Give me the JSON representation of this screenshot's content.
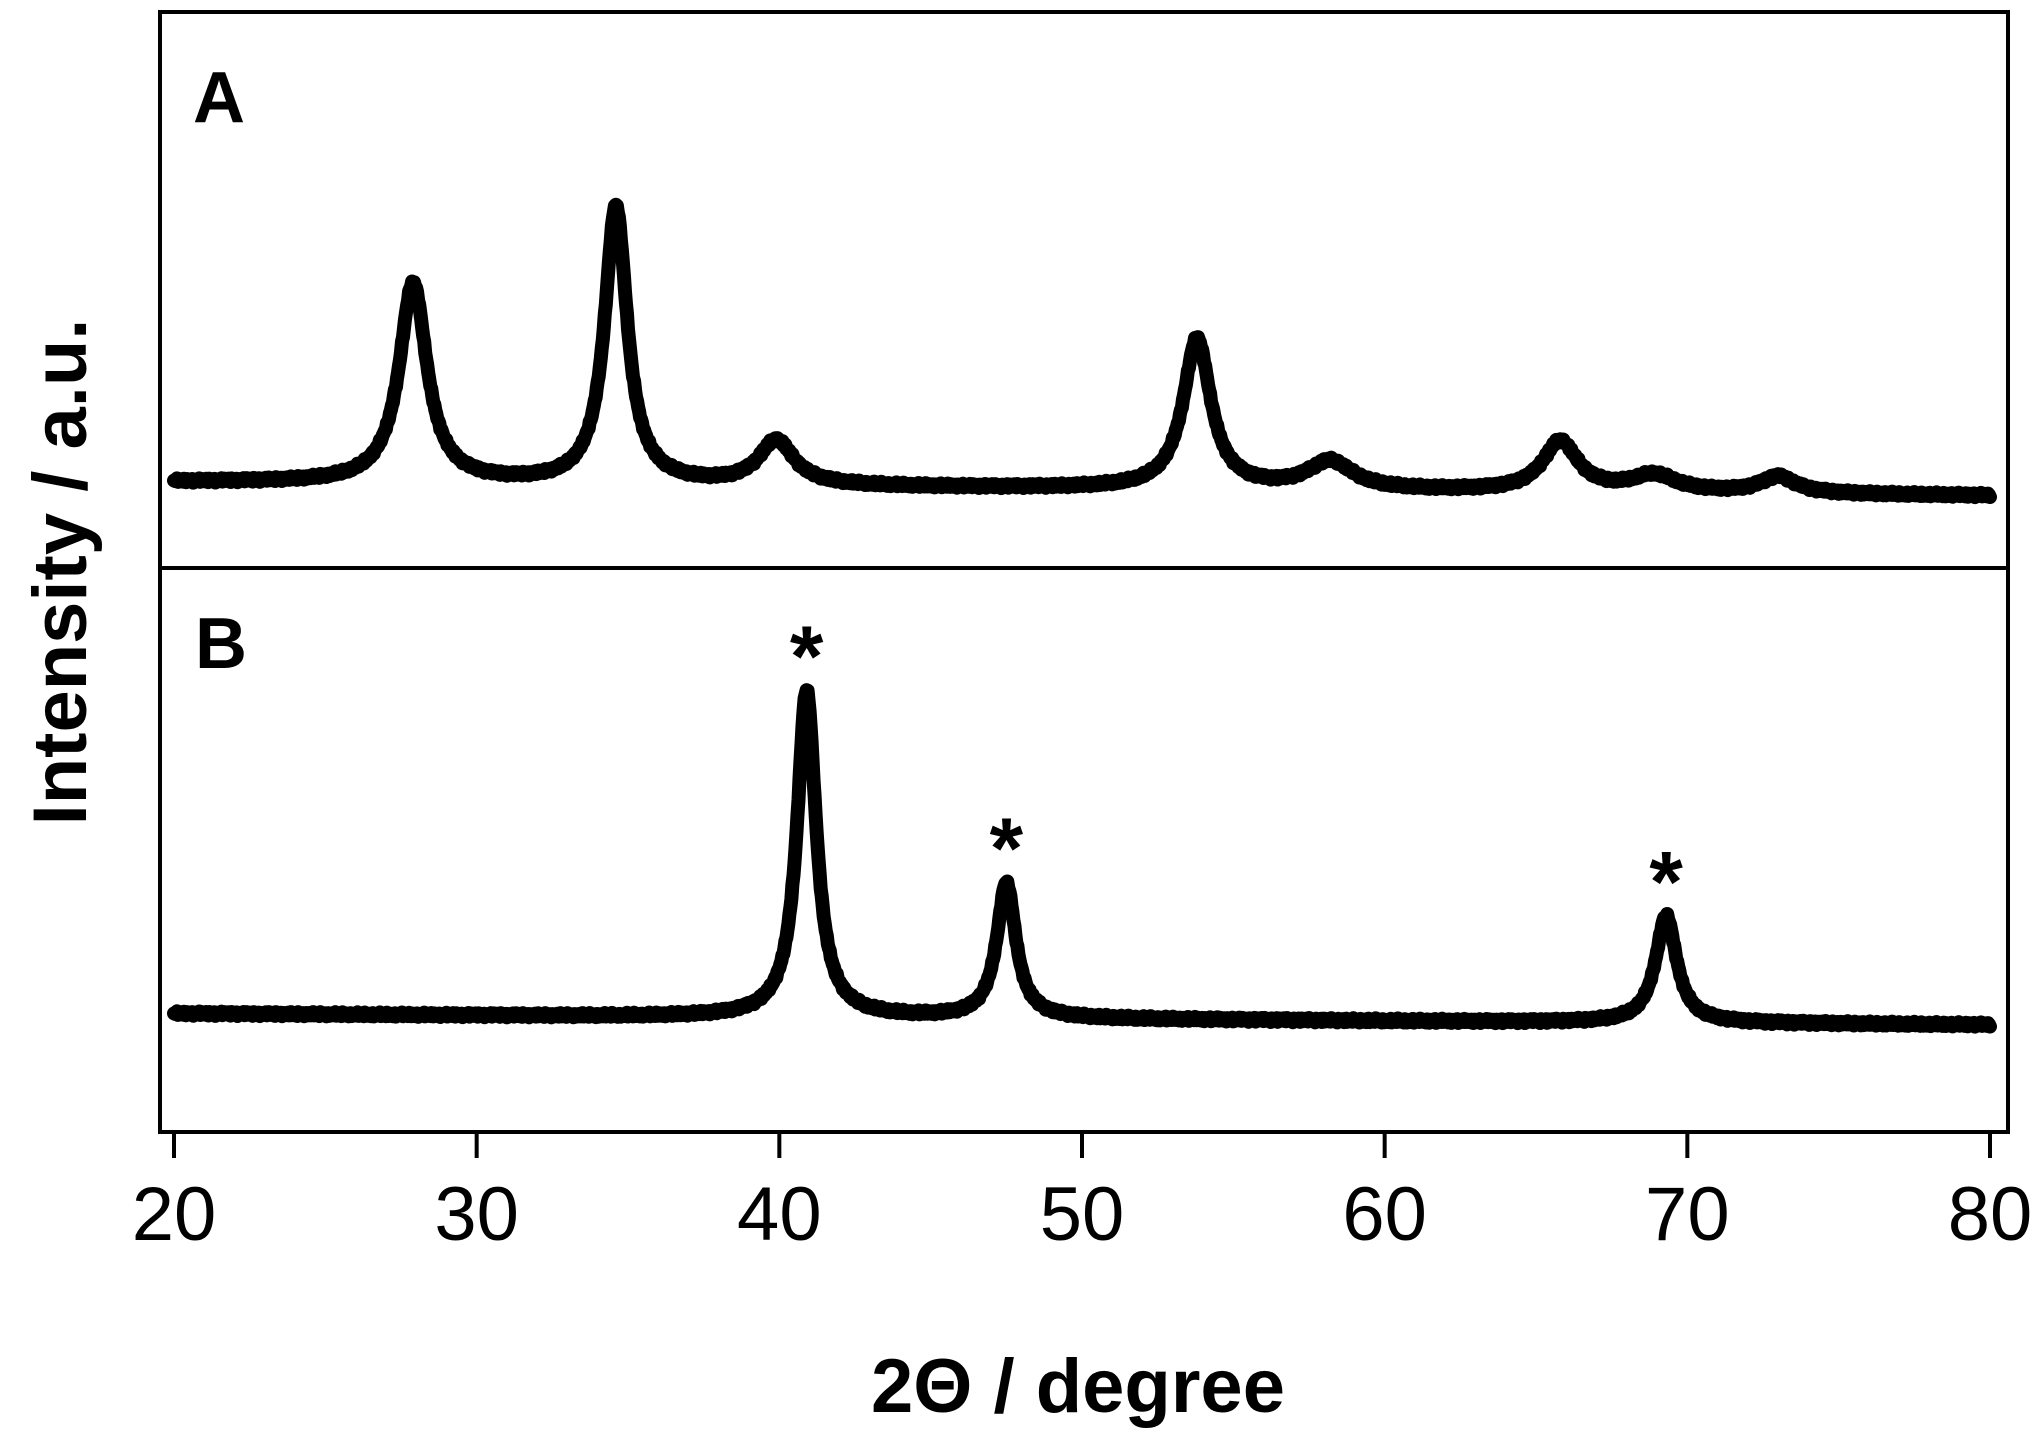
{
  "chart_data": {
    "type": "line",
    "xlabel": "2Θ / degree",
    "ylabel": "Intensity / a.u.",
    "xlim": [
      20,
      80
    ],
    "x_ticks": [
      "20",
      "30",
      "40",
      "50",
      "60",
      "70",
      "80"
    ],
    "grid": false,
    "panels": [
      {
        "label": "A",
        "ylim": [
          0,
          1.0
        ],
        "series": [
          {
            "baseline": 0.155,
            "baseline_end": 0.13,
            "peaks": [
              {
                "x": 27.9,
                "height": 0.36,
                "width": 0.55
              },
              {
                "x": 34.6,
                "height": 0.5,
                "width": 0.45
              },
              {
                "x": 39.9,
                "height": 0.08,
                "width": 0.7
              },
              {
                "x": 53.8,
                "height": 0.27,
                "width": 0.55
              },
              {
                "x": 58.2,
                "height": 0.05,
                "width": 0.9
              },
              {
                "x": 65.8,
                "height": 0.09,
                "width": 0.7
              },
              {
                "x": 68.9,
                "height": 0.03,
                "width": 0.9
              },
              {
                "x": 73.0,
                "height": 0.03,
                "width": 0.7
              }
            ]
          }
        ]
      },
      {
        "label": "B",
        "ylim": [
          0,
          1.0
        ],
        "series": [
          {
            "baseline": 0.21,
            "baseline_end": 0.19,
            "peaks": [
              {
                "x": 40.9,
                "height": 0.58,
                "width": 0.38
              },
              {
                "x": 47.5,
                "height": 0.24,
                "width": 0.38
              },
              {
                "x": 69.3,
                "height": 0.19,
                "width": 0.42
              }
            ]
          }
        ],
        "annotations": [
          {
            "text": "*",
            "x": 40.9
          },
          {
            "text": "*",
            "x": 47.5
          },
          {
            "text": "*",
            "x": 69.3
          }
        ]
      }
    ]
  }
}
